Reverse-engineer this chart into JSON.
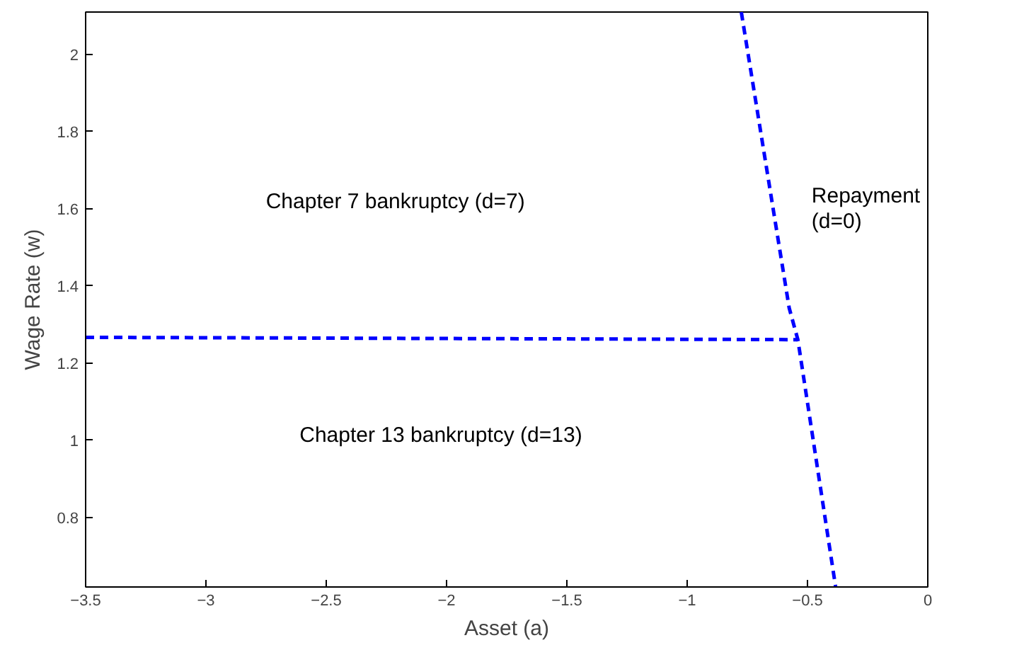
{
  "chart_data": {
    "type": "line",
    "xlabel": "Asset (a)",
    "ylabel": "Wage Rate (w)",
    "xlim": [
      -3.5,
      0
    ],
    "ylim": [
      0.62,
      2.11
    ],
    "xticks": [
      -3.5,
      -3,
      -2.5,
      -2,
      -1.5,
      -1,
      -0.5,
      0
    ],
    "yticks": [
      0.8,
      1,
      1.2,
      1.4,
      1.6,
      1.8,
      2
    ],
    "grid": false,
    "line_style": "dashed",
    "marker": "none",
    "series": [
      {
        "color": "#0000ff",
        "x": [
          -3.5,
          -0.54
        ],
        "values": [
          1.267,
          1.261
        ]
      },
      {
        "color": "#0000ff",
        "x": [
          -0.775,
          -0.576,
          -0.54,
          -0.383
        ],
        "values": [
          2.11,
          1.343,
          1.261,
          0.62
        ]
      }
    ],
    "annotations": [
      "Chapter 7 bankruptcy (d=7)",
      "Chapter 13 bankruptcy (d=13)",
      "Repayment\n(d=0)"
    ]
  }
}
